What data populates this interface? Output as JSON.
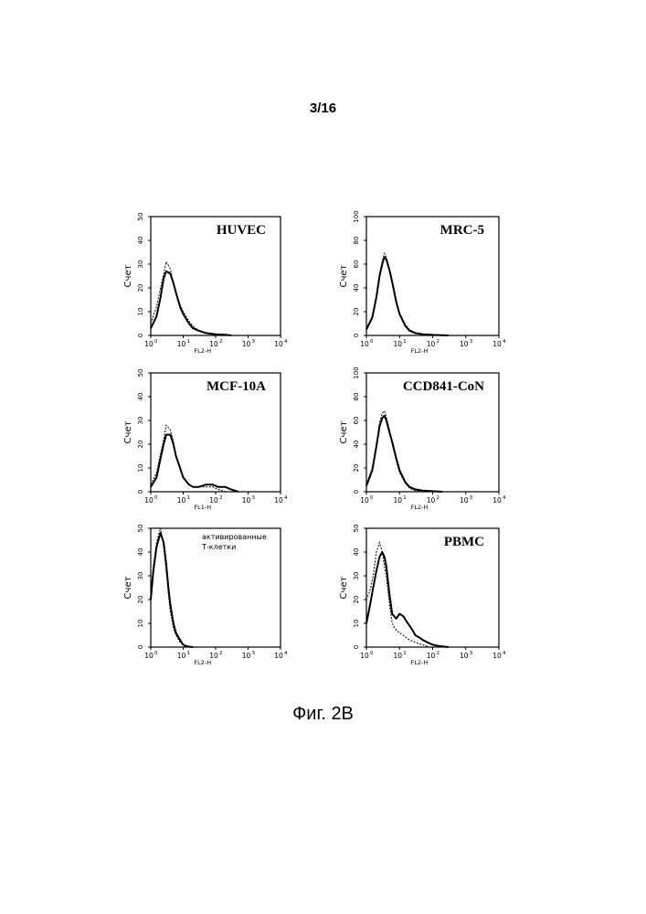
{
  "page": {
    "number": "3/16",
    "caption": "Фиг. 2B"
  },
  "chart_data": [
    {
      "type": "line",
      "title": "HUVEC",
      "ylabel": "Счет",
      "xlabel": "FL2-H",
      "xscale": "log",
      "xlim": [
        1,
        10000
      ],
      "ylim": [
        0,
        50
      ],
      "yticks": [
        "0",
        "10",
        "20",
        "30",
        "40",
        "50"
      ],
      "xticks": [
        {
          "base": "10",
          "exp": "0"
        },
        {
          "base": "10",
          "exp": "1"
        },
        {
          "base": "10",
          "exp": "2"
        },
        {
          "base": "10",
          "exp": "3"
        },
        {
          "base": "10",
          "exp": "4"
        }
      ],
      "series": [
        {
          "style": "solid",
          "x": [
            1,
            1.5,
            2,
            2.5,
            3,
            4,
            5,
            6,
            8,
            10,
            15,
            20,
            30,
            50,
            100,
            200,
            300
          ],
          "y": [
            3,
            8,
            16,
            24,
            27,
            26,
            22,
            18,
            12,
            9,
            5,
            3,
            2,
            1,
            0.5,
            0.3,
            0
          ]
        },
        {
          "style": "dashed",
          "x": [
            1,
            1.5,
            2,
            2.5,
            3,
            4,
            5,
            6,
            8,
            10,
            15,
            20,
            30,
            50,
            100,
            200
          ],
          "y": [
            5,
            12,
            20,
            26,
            31,
            28,
            22,
            18,
            13,
            10,
            6,
            4,
            2,
            1,
            0.4,
            0
          ]
        }
      ]
    },
    {
      "type": "line",
      "title": "MRC-5",
      "ylabel": "Счет",
      "xlabel": "FL2-H",
      "xscale": "log",
      "xlim": [
        1,
        10000
      ],
      "ylim": [
        0,
        100
      ],
      "yticks": [
        "0",
        "20",
        "40",
        "60",
        "80",
        "100"
      ],
      "xticks": [
        {
          "base": "10",
          "exp": "0"
        },
        {
          "base": "10",
          "exp": "1"
        },
        {
          "base": "10",
          "exp": "2"
        },
        {
          "base": "10",
          "exp": "3"
        },
        {
          "base": "10",
          "exp": "4"
        }
      ],
      "series": [
        {
          "style": "solid",
          "x": [
            1,
            1.5,
            2,
            2.5,
            3,
            3.5,
            4,
            5,
            6,
            8,
            10,
            15,
            20,
            30,
            50,
            100,
            300
          ],
          "y": [
            5,
            15,
            32,
            50,
            60,
            66,
            64,
            55,
            45,
            28,
            18,
            8,
            4,
            2,
            1,
            0.5,
            0
          ]
        },
        {
          "style": "dashed",
          "x": [
            1,
            1.5,
            2,
            2.5,
            3,
            3.5,
            4,
            5,
            6,
            8,
            10,
            15,
            20,
            30,
            50,
            100
          ],
          "y": [
            6,
            16,
            34,
            52,
            62,
            69,
            66,
            56,
            46,
            30,
            19,
            9,
            5,
            2,
            1,
            0
          ]
        }
      ]
    },
    {
      "type": "line",
      "title": "MCF-10A",
      "ylabel": "Счет",
      "xlabel": "FL1-H",
      "xscale": "log",
      "xlim": [
        1,
        10000
      ],
      "ylim": [
        0,
        50
      ],
      "yticks": [
        "0",
        "10",
        "20",
        "30",
        "40",
        "50"
      ],
      "xticks": [
        {
          "base": "10",
          "exp": "0"
        },
        {
          "base": "10",
          "exp": "1"
        },
        {
          "base": "10",
          "exp": "2"
        },
        {
          "base": "10",
          "exp": "3"
        },
        {
          "base": "10",
          "exp": "4"
        }
      ],
      "series": [
        {
          "style": "solid",
          "x": [
            1,
            1.5,
            2,
            2.5,
            3,
            4,
            5,
            6,
            8,
            10,
            15,
            20,
            30,
            50,
            80,
            120,
            200,
            300,
            500
          ],
          "y": [
            2,
            6,
            14,
            20,
            24,
            24,
            20,
            15,
            10,
            6,
            3,
            2,
            2,
            3,
            3,
            2,
            2,
            1,
            0
          ]
        },
        {
          "style": "dashed",
          "x": [
            1,
            1.5,
            2,
            2.5,
            3,
            4,
            5,
            6,
            8,
            10,
            15,
            20,
            30,
            50,
            80,
            120,
            200
          ],
          "y": [
            3,
            8,
            16,
            22,
            28,
            26,
            21,
            15,
            10,
            6,
            3,
            2,
            2,
            2,
            2,
            1,
            0
          ]
        }
      ]
    },
    {
      "type": "line",
      "title": "CCD841-CoN",
      "ylabel": "Счет",
      "xlabel": "FL2-H",
      "xscale": "log",
      "xlim": [
        1,
        10000
      ],
      "ylim": [
        0,
        100
      ],
      "yticks": [
        "0",
        "20",
        "40",
        "60",
        "80",
        "100"
      ],
      "xticks": [
        {
          "base": "10",
          "exp": "0"
        },
        {
          "base": "10",
          "exp": "1"
        },
        {
          "base": "10",
          "exp": "2"
        },
        {
          "base": "10",
          "exp": "3"
        },
        {
          "base": "10",
          "exp": "4"
        }
      ],
      "series": [
        {
          "style": "solid",
          "x": [
            1,
            1.5,
            2,
            2.5,
            3,
            3.5,
            4,
            5,
            6,
            8,
            10,
            15,
            20,
            30,
            50,
            100,
            200
          ],
          "y": [
            5,
            18,
            38,
            55,
            62,
            64,
            60,
            50,
            42,
            28,
            18,
            8,
            4,
            2,
            1,
            0.5,
            0
          ]
        },
        {
          "style": "dashed",
          "x": [
            1,
            1.5,
            2,
            2.5,
            3,
            3.5,
            4,
            5,
            6,
            8,
            10,
            15,
            20,
            30,
            50,
            100
          ],
          "y": [
            6,
            20,
            40,
            58,
            66,
            68,
            63,
            52,
            40,
            26,
            16,
            7,
            3,
            1,
            0.5,
            0
          ]
        }
      ]
    },
    {
      "type": "line",
      "title": "активированные Т-клетки",
      "ylabel": "Счет",
      "xlabel": "FL2-H",
      "xscale": "log",
      "xlim": [
        1,
        10000
      ],
      "ylim": [
        0,
        50
      ],
      "yticks": [
        "0",
        "10",
        "20",
        "30",
        "40",
        "50"
      ],
      "xticks": [
        {
          "base": "10",
          "exp": "0"
        },
        {
          "base": "10",
          "exp": "1"
        },
        {
          "base": "10",
          "exp": "2"
        },
        {
          "base": "10",
          "exp": "3"
        },
        {
          "base": "10",
          "exp": "4"
        }
      ],
      "series": [
        {
          "style": "solid",
          "x": [
            1,
            1.2,
            1.5,
            1.8,
            2,
            2.5,
            3,
            3.5,
            4,
            5,
            6,
            8,
            10,
            12,
            15,
            20
          ],
          "y": [
            20,
            32,
            42,
            46,
            48,
            44,
            35,
            25,
            18,
            10,
            6,
            3,
            1,
            0.5,
            0.2,
            0
          ]
        },
        {
          "style": "dashed",
          "x": [
            1,
            1.2,
            1.5,
            1.8,
            2,
            2.5,
            3,
            3.5,
            4,
            5,
            6,
            8,
            10,
            12,
            15
          ],
          "y": [
            22,
            34,
            44,
            48,
            50,
            42,
            32,
            22,
            15,
            8,
            5,
            2,
            1,
            0.3,
            0
          ]
        }
      ]
    },
    {
      "type": "line",
      "title": "PBMC",
      "ylabel": "Счет",
      "xlabel": "FL2-H",
      "xscale": "log",
      "xlim": [
        1,
        10000
      ],
      "ylim": [
        0,
        50
      ],
      "yticks": [
        "0",
        "10",
        "20",
        "30",
        "40",
        "50"
      ],
      "xticks": [
        {
          "base": "10",
          "exp": "0"
        },
        {
          "base": "10",
          "exp": "1"
        },
        {
          "base": "10",
          "exp": "2"
        },
        {
          "base": "10",
          "exp": "3"
        },
        {
          "base": "10",
          "exp": "4"
        }
      ],
      "series": [
        {
          "style": "solid",
          "x": [
            1,
            1.3,
            1.6,
            2,
            2.5,
            3,
            3.5,
            4,
            5,
            6,
            8,
            10,
            13,
            16,
            20,
            25,
            30,
            40,
            50,
            70,
            100,
            150,
            200,
            300
          ],
          "y": [
            10,
            18,
            25,
            32,
            38,
            40,
            38,
            34,
            22,
            14,
            12,
            14,
            13,
            11,
            9,
            7,
            5,
            4,
            3,
            2,
            1,
            0.5,
            0.3,
            0
          ]
        },
        {
          "style": "dashed",
          "x": [
            1,
            1.3,
            1.6,
            2,
            2.5,
            3,
            3.5,
            4,
            5,
            6,
            8,
            10,
            13,
            16,
            20,
            30,
            50,
            80
          ],
          "y": [
            20,
            24,
            30,
            40,
            44,
            40,
            34,
            30,
            18,
            10,
            7,
            6,
            5,
            4,
            3,
            2,
            1,
            0
          ]
        }
      ]
    }
  ]
}
